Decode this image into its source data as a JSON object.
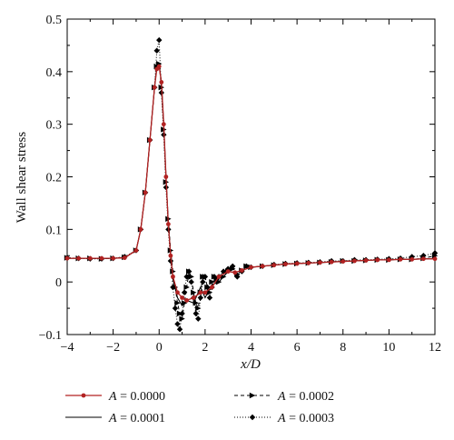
{
  "chart_data": {
    "type": "line",
    "xlabel": "x/D",
    "ylabel": "Wall shear stress",
    "xlim": [
      -4,
      12
    ],
    "ylim": [
      -0.1,
      0.5
    ],
    "x_ticks": [
      "−4",
      "−2",
      "0",
      "2",
      "4",
      "6",
      "8",
      "10",
      "12"
    ],
    "y_ticks": [
      "−0.1",
      "0",
      "0.1",
      "0.2",
      "0.3",
      "0.4",
      "0.5"
    ],
    "grid": false,
    "legend_position": "bottom",
    "colors": {
      "A0": "#b22222",
      "other": "#000000"
    },
    "series": [
      {
        "name": "A = 0.0000",
        "legend_var": "A",
        "legend_value": " = 0.0000",
        "x": [
          -4.0,
          -3.5,
          -3.0,
          -2.5,
          -2.0,
          -1.5,
          -1.0,
          -0.8,
          -0.6,
          -0.4,
          -0.2,
          -0.1,
          0.0,
          0.1,
          0.2,
          0.3,
          0.4,
          0.5,
          0.6,
          0.8,
          1.0,
          1.2,
          1.5,
          1.8,
          2.0,
          2.3,
          2.6,
          3.0,
          3.3,
          3.6,
          4.0,
          4.5,
          5.0,
          5.5,
          6.0,
          6.5,
          7.0,
          7.5,
          8.0,
          8.5,
          9.0,
          9.5,
          10.0,
          10.5,
          11.0,
          11.5,
          12.0
        ],
        "y": [
          0.045,
          0.045,
          0.045,
          0.045,
          0.045,
          0.046,
          0.06,
          0.1,
          0.17,
          0.27,
          0.37,
          0.405,
          0.41,
          0.38,
          0.3,
          0.2,
          0.11,
          0.05,
          0.01,
          -0.02,
          -0.03,
          -0.035,
          -0.03,
          -0.02,
          -0.02,
          -0.01,
          0.01,
          0.02,
          0.018,
          0.022,
          0.028,
          0.03,
          0.032,
          0.034,
          0.035,
          0.036,
          0.037,
          0.038,
          0.039,
          0.04,
          0.041,
          0.042,
          0.042,
          0.043,
          0.043,
          0.044,
          0.044
        ]
      },
      {
        "name": "A = 0.0001",
        "legend_var": "A",
        "legend_value": " = 0.0001",
        "x": [
          -4.0,
          -3.5,
          -3.0,
          -2.5,
          -2.0,
          -1.5,
          -1.0,
          -0.8,
          -0.6,
          -0.4,
          -0.2,
          -0.1,
          0.0,
          0.1,
          0.2,
          0.3,
          0.4,
          0.5,
          0.6,
          0.8,
          1.0,
          1.2,
          1.5,
          1.8,
          2.0,
          2.3,
          2.6,
          3.0,
          3.3,
          3.6,
          4.0,
          4.5,
          5.0,
          5.5,
          6.0,
          6.5,
          7.0,
          7.5,
          8.0,
          8.5,
          9.0,
          9.5,
          10.0,
          10.5,
          11.0,
          11.5,
          12.0
        ],
        "y": [
          0.045,
          0.045,
          0.045,
          0.045,
          0.045,
          0.046,
          0.06,
          0.1,
          0.17,
          0.27,
          0.37,
          0.41,
          0.415,
          0.38,
          0.3,
          0.2,
          0.11,
          0.05,
          0.005,
          -0.03,
          -0.045,
          -0.035,
          -0.04,
          -0.01,
          -0.03,
          -0.005,
          0.0,
          0.02,
          0.018,
          0.022,
          0.028,
          0.03,
          0.032,
          0.034,
          0.035,
          0.036,
          0.037,
          0.038,
          0.039,
          0.04,
          0.041,
          0.042,
          0.042,
          0.043,
          0.043,
          0.044,
          0.044
        ]
      },
      {
        "name": "A = 0.0002",
        "legend_var": "A",
        "legend_value": " = 0.0002",
        "x": [
          -4.0,
          -3.5,
          -3.0,
          -2.5,
          -2.0,
          -1.5,
          -1.0,
          -0.8,
          -0.6,
          -0.4,
          -0.2,
          -0.1,
          0.0,
          0.1,
          0.2,
          0.3,
          0.4,
          0.5,
          0.6,
          0.7,
          0.8,
          0.9,
          1.0,
          1.1,
          1.2,
          1.3,
          1.4,
          1.5,
          1.6,
          1.7,
          1.8,
          1.9,
          2.0,
          2.1,
          2.2,
          2.3,
          2.4,
          2.5,
          2.6,
          2.8,
          3.0,
          3.2,
          3.4,
          3.6,
          3.8,
          4.0,
          4.5,
          5.0,
          5.5,
          6.0,
          6.5,
          7.0,
          7.5,
          8.0,
          8.5,
          9.0,
          9.5,
          10.0,
          10.5,
          11.0,
          11.5,
          12.0
        ],
        "y": [
          0.046,
          0.045,
          0.045,
          0.044,
          0.045,
          0.047,
          0.06,
          0.1,
          0.17,
          0.27,
          0.37,
          0.41,
          0.415,
          0.37,
          0.29,
          0.19,
          0.12,
          0.06,
          0.02,
          -0.01,
          -0.04,
          -0.06,
          -0.07,
          -0.04,
          -0.01,
          0.02,
          0.01,
          -0.02,
          -0.04,
          -0.05,
          -0.02,
          0.01,
          0.01,
          -0.01,
          -0.02,
          0.0,
          0.01,
          0.005,
          0.0,
          0.01,
          0.02,
          0.025,
          0.015,
          0.022,
          0.03,
          0.028,
          0.03,
          0.032,
          0.034,
          0.035,
          0.036,
          0.037,
          0.038,
          0.04,
          0.04,
          0.041,
          0.042,
          0.042,
          0.043,
          0.043,
          0.045,
          0.05
        ]
      },
      {
        "name": "A = 0.0003",
        "legend_var": "A",
        "legend_value": " = 0.0003",
        "x": [
          -4.0,
          -3.5,
          -3.0,
          -2.5,
          -2.0,
          -1.5,
          -1.0,
          -0.8,
          -0.6,
          -0.4,
          -0.2,
          -0.1,
          0.0,
          0.1,
          0.2,
          0.3,
          0.4,
          0.5,
          0.6,
          0.7,
          0.8,
          0.9,
          1.0,
          1.1,
          1.2,
          1.3,
          1.4,
          1.5,
          1.6,
          1.7,
          1.8,
          1.9,
          2.0,
          2.1,
          2.2,
          2.3,
          2.4,
          2.5,
          2.6,
          2.8,
          3.0,
          3.2,
          3.4,
          3.6,
          3.8,
          4.0,
          4.5,
          5.0,
          5.5,
          6.0,
          6.5,
          7.0,
          7.5,
          8.0,
          8.5,
          9.0,
          9.5,
          10.0,
          10.5,
          11.0,
          11.5,
          12.0
        ],
        "y": [
          0.046,
          0.045,
          0.044,
          0.044,
          0.045,
          0.048,
          0.06,
          0.1,
          0.17,
          0.27,
          0.37,
          0.44,
          0.46,
          0.36,
          0.28,
          0.18,
          0.1,
          0.04,
          -0.01,
          -0.05,
          -0.08,
          -0.09,
          -0.06,
          -0.02,
          0.01,
          0.02,
          0.0,
          -0.03,
          -0.06,
          -0.07,
          -0.03,
          0.0,
          0.01,
          -0.01,
          -0.03,
          -0.01,
          0.01,
          0.005,
          0.01,
          0.02,
          0.025,
          0.03,
          0.01,
          0.02,
          0.03,
          0.028,
          0.03,
          0.033,
          0.035,
          0.036,
          0.037,
          0.038,
          0.04,
          0.04,
          0.042,
          0.042,
          0.043,
          0.044,
          0.045,
          0.048,
          0.05,
          0.055
        ]
      }
    ]
  }
}
